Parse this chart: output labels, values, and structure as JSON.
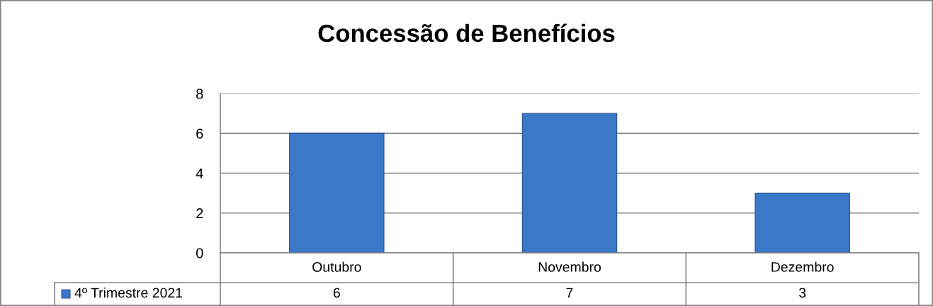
{
  "chart_data": {
    "type": "bar",
    "title": "Concessão de Benefícios",
    "categories": [
      "Outubro",
      "Novembro",
      "Dezembro"
    ],
    "series": [
      {
        "name": "4º Trimestre 2021",
        "color": "#3c78c8",
        "values": [
          6,
          7,
          3
        ]
      }
    ],
    "ylim": [
      0,
      8
    ],
    "yticks": [
      0,
      2,
      4,
      6,
      8
    ],
    "grid": "y",
    "legend": "bottom left",
    "data_labels": true
  }
}
